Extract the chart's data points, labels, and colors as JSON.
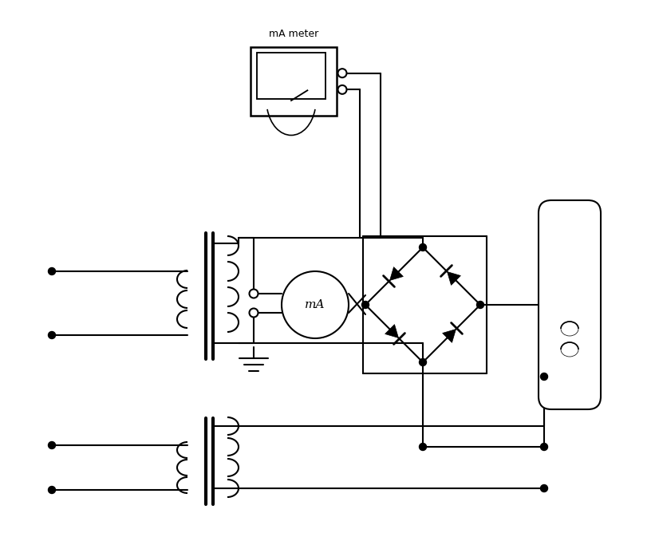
{
  "bg_color": "#ffffff",
  "line_color": "#000000",
  "meter_label": "mA meter",
  "ma_label": "mA",
  "lw": 1.5
}
